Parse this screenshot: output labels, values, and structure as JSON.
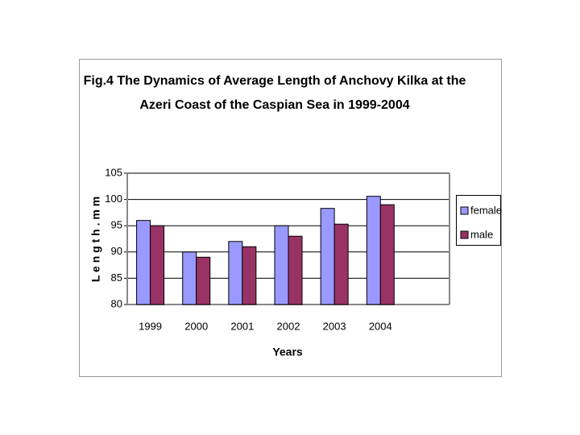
{
  "chart_data": {
    "type": "bar",
    "title": [
      "Fig.4 The Dynamics of Average Length of Anchovy Kilka at the",
      "Azeri Coast of the Caspian Sea in  1999-2004"
    ],
    "x_label": "Years",
    "y_label": "L e n g t h . m m",
    "categories": [
      "1999",
      "2000",
      "2001",
      "2002",
      "2003",
      "2004",
      null
    ],
    "series": [
      {
        "name": "female",
        "color": "#9999ff",
        "values": [
          96,
          90,
          92,
          95,
          98.3,
          100.6,
          null
        ]
      },
      {
        "name": "male",
        "color": "#993366",
        "values": [
          95,
          89,
          91,
          93,
          95.3,
          99,
          null
        ]
      }
    ],
    "ylim": [
      80,
      105
    ],
    "yticks": [
      80,
      85,
      90,
      95,
      100,
      105
    ],
    "grid": true,
    "legend": "right"
  }
}
